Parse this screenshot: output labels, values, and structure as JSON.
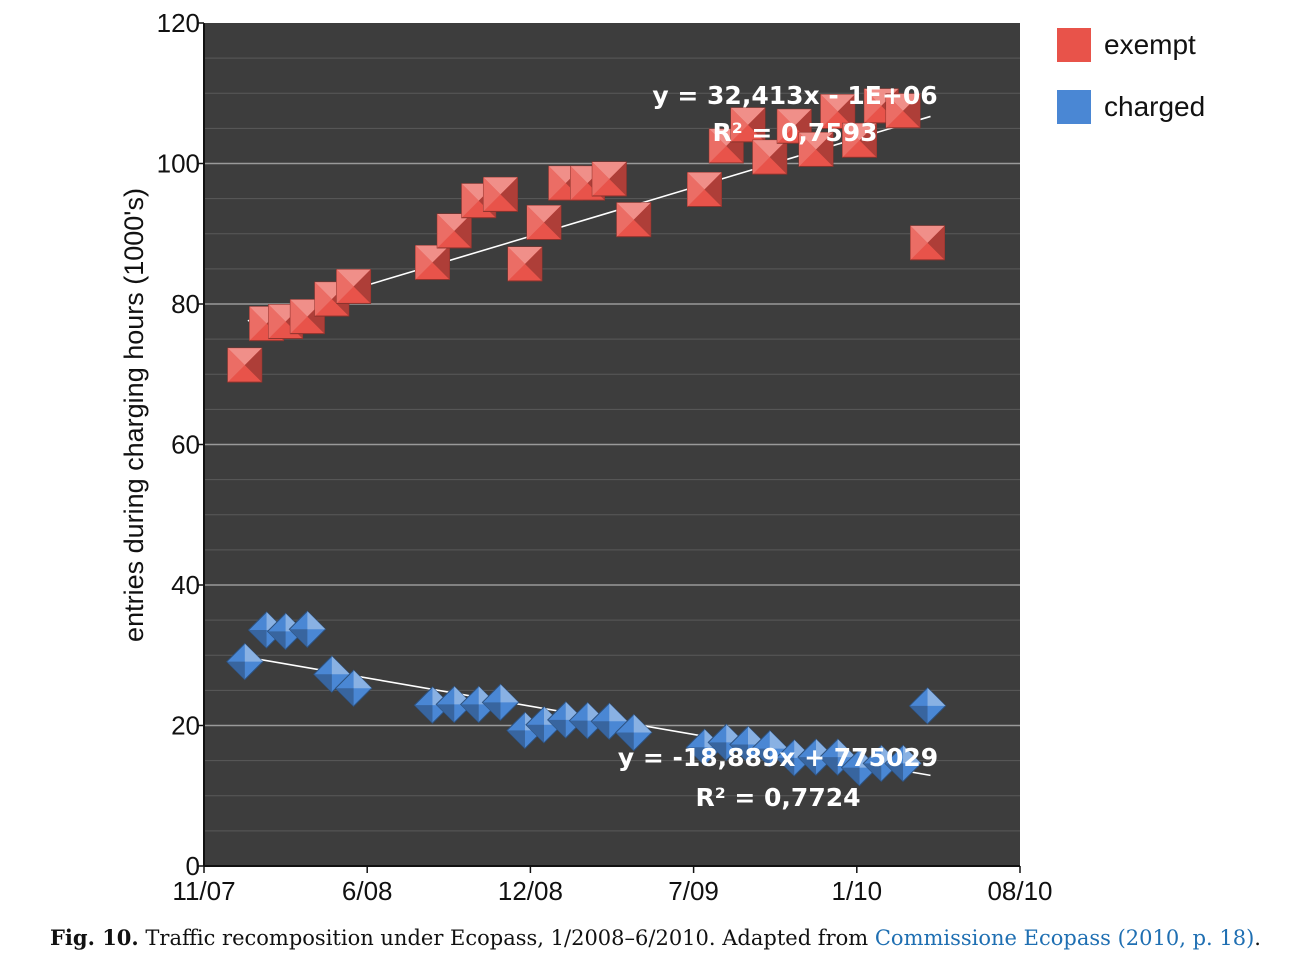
{
  "chart_data": {
    "type": "scatter",
    "ylabel": "entries during charging hours (1000's)",
    "ylim": [
      0,
      120
    ],
    "yticks": [
      "0",
      "20",
      "40",
      "60",
      "80",
      "100",
      "120"
    ],
    "xticks": [
      "11/07",
      "6/08",
      "12/08",
      "7/09",
      "1/10",
      "08/10"
    ],
    "legend_position": "top-right",
    "grid": true,
    "series": [
      {
        "name": "exempt",
        "color": "#e8534a",
        "marker": "square",
        "x": [
          1.5,
          2.3,
          3.0,
          3.8,
          4.7,
          5.5,
          8.4,
          9.2,
          10.1,
          10.9,
          11.8,
          12.5,
          13.3,
          14.1,
          14.9,
          15.8,
          18.4,
          19.2,
          20.0,
          20.8,
          21.7,
          22.5,
          23.3,
          24.1,
          24.9,
          25.7,
          26.6
        ],
        "y": [
          71.3,
          77.2,
          77.5,
          78.2,
          80.7,
          82.5,
          85.9,
          90.4,
          94.7,
          95.6,
          85.7,
          91.6,
          97.2,
          97.2,
          97.8,
          92.0,
          96.3,
          102.5,
          105.5,
          100.9,
          105.3,
          102.0,
          107.4,
          103.3,
          108.2,
          107.5,
          88.7
        ],
        "trendline": {
          "y_start": 77.6,
          "y_end": 106.7,
          "equation": "y = 32,413x - 1E+06",
          "r2": "R² = 0,7593"
        }
      },
      {
        "name": "charged",
        "color": "#4a87d4",
        "marker": "diamond",
        "x": [
          1.5,
          2.3,
          3.0,
          3.8,
          4.7,
          5.5,
          8.4,
          9.2,
          10.1,
          10.9,
          11.8,
          12.5,
          13.3,
          14.1,
          14.9,
          15.8,
          18.4,
          19.2,
          20.0,
          20.8,
          21.7,
          22.5,
          23.3,
          24.1,
          24.9,
          25.7,
          26.6
        ],
        "y": [
          29.1,
          33.6,
          33.4,
          33.7,
          27.3,
          25.3,
          22.9,
          23.0,
          23.0,
          23.3,
          19.3,
          20.1,
          20.8,
          20.7,
          20.6,
          19.0,
          16.9,
          17.6,
          17.3,
          16.7,
          15.4,
          15.5,
          15.5,
          14.0,
          14.6,
          14.6,
          22.8
        ],
        "trendline": {
          "y_start": 29.7,
          "y_end": 12.9,
          "equation": "y = -18,889x + 775029",
          "r2": "R² = 0,7724"
        }
      }
    ]
  },
  "caption": {
    "label": "Fig. 10.",
    "text": " Traffic recomposition under Ecopass, 1/2008–6/2010. Adapted from ",
    "link": "Commissione Ecopass (2010, p. 18)",
    "end": "."
  }
}
